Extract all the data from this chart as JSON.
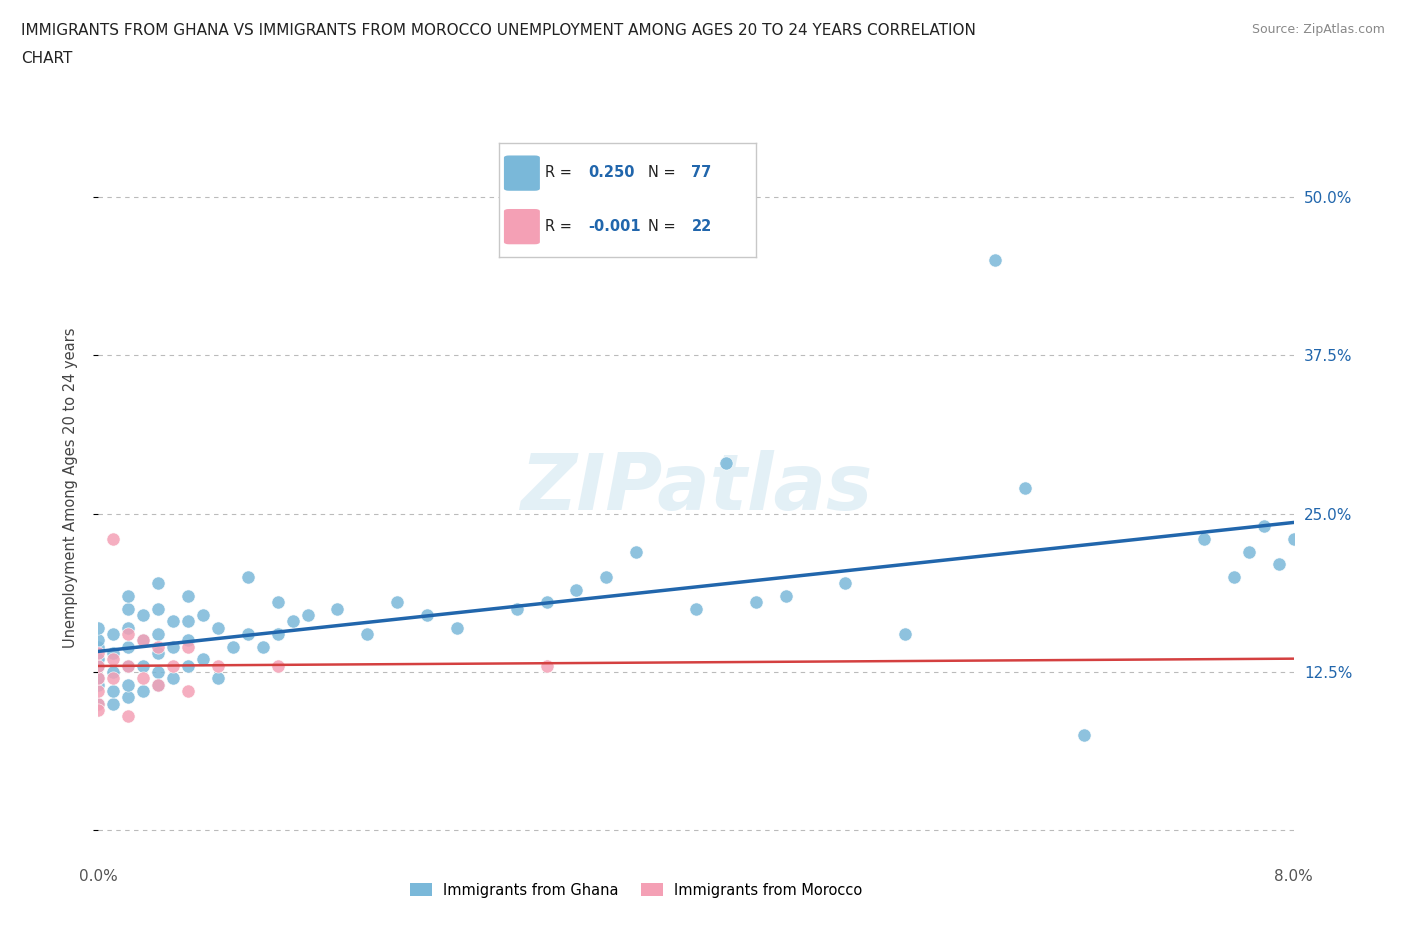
{
  "title": "IMMIGRANTS FROM GHANA VS IMMIGRANTS FROM MOROCCO UNEMPLOYMENT AMONG AGES 20 TO 24 YEARS CORRELATION\nCHART",
  "source": "Source: ZipAtlas.com",
  "ylabel": "Unemployment Among Ages 20 to 24 years",
  "xlim": [
    0.0,
    0.08
  ],
  "ylim": [
    -0.02,
    0.56
  ],
  "xticks": [
    0.0,
    0.02,
    0.04,
    0.06,
    0.08
  ],
  "xtick_labels": [
    "0.0%",
    "",
    "",
    "",
    "8.0%"
  ],
  "yticks": [
    0.0,
    0.125,
    0.25,
    0.375,
    0.5
  ],
  "ytick_labels": [
    "",
    "12.5%",
    "25.0%",
    "37.5%",
    "50.0%"
  ],
  "ghana_color": "#7ab8d9",
  "morocco_color": "#f4a0b5",
  "trend_ghana_color": "#2166ac",
  "trend_morocco_color": "#d44040",
  "background_color": "#ffffff",
  "grid_color": "#bbbbbb",
  "ghana_x": [
    0.0,
    0.0,
    0.0,
    0.0,
    0.0,
    0.0,
    0.0,
    0.0,
    0.001,
    0.001,
    0.001,
    0.001,
    0.001,
    0.002,
    0.002,
    0.002,
    0.002,
    0.002,
    0.002,
    0.002,
    0.003,
    0.003,
    0.003,
    0.003,
    0.004,
    0.004,
    0.004,
    0.004,
    0.004,
    0.004,
    0.005,
    0.005,
    0.005,
    0.006,
    0.006,
    0.006,
    0.006,
    0.007,
    0.007,
    0.008,
    0.008,
    0.009,
    0.01,
    0.01,
    0.011,
    0.012,
    0.012,
    0.013,
    0.014,
    0.016,
    0.018,
    0.02,
    0.022,
    0.024,
    0.028,
    0.03,
    0.032,
    0.034,
    0.036,
    0.04,
    0.042,
    0.044,
    0.046,
    0.05,
    0.054,
    0.06,
    0.062,
    0.066,
    0.074,
    0.076,
    0.077,
    0.078,
    0.079,
    0.08
  ],
  "ghana_y": [
    0.1,
    0.115,
    0.12,
    0.13,
    0.135,
    0.145,
    0.15,
    0.16,
    0.1,
    0.11,
    0.125,
    0.14,
    0.155,
    0.105,
    0.115,
    0.13,
    0.145,
    0.16,
    0.175,
    0.185,
    0.11,
    0.13,
    0.15,
    0.17,
    0.115,
    0.125,
    0.14,
    0.155,
    0.175,
    0.195,
    0.12,
    0.145,
    0.165,
    0.13,
    0.15,
    0.165,
    0.185,
    0.135,
    0.17,
    0.12,
    0.16,
    0.145,
    0.155,
    0.2,
    0.145,
    0.155,
    0.18,
    0.165,
    0.17,
    0.175,
    0.155,
    0.18,
    0.17,
    0.16,
    0.175,
    0.18,
    0.19,
    0.2,
    0.22,
    0.175,
    0.29,
    0.18,
    0.185,
    0.195,
    0.155,
    0.45,
    0.27,
    0.075,
    0.23,
    0.2,
    0.22,
    0.24,
    0.21,
    0.23
  ],
  "morocco_x": [
    0.0,
    0.0,
    0.0,
    0.0,
    0.0,
    0.0,
    0.001,
    0.001,
    0.001,
    0.002,
    0.002,
    0.002,
    0.003,
    0.003,
    0.004,
    0.004,
    0.005,
    0.006,
    0.006,
    0.008,
    0.012,
    0.03
  ],
  "morocco_y": [
    0.1,
    0.11,
    0.12,
    0.13,
    0.14,
    0.095,
    0.12,
    0.135,
    0.23,
    0.09,
    0.13,
    0.155,
    0.12,
    0.15,
    0.115,
    0.145,
    0.13,
    0.11,
    0.145,
    0.13,
    0.13,
    0.13
  ]
}
